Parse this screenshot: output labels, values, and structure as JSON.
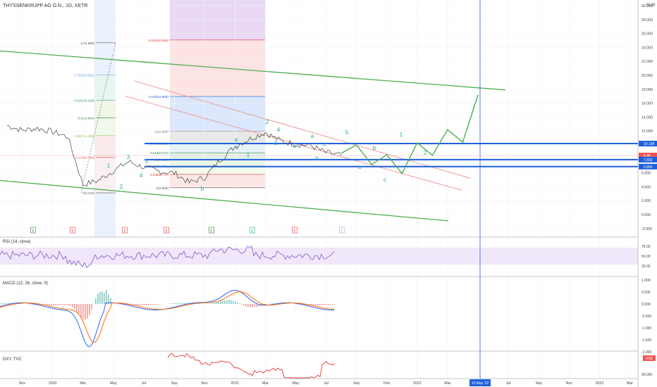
{
  "header": {
    "symbol_title": "THYSSENKRUPP AG O.N., 1D, XETR",
    "currency": "EUR"
  },
  "price_axis": {
    "ticks": [
      "30.000",
      "28.000",
      "26.000",
      "24.000",
      "22.000",
      "20.000",
      "18.000",
      "16.000",
      "14.000",
      "12.000",
      "10.000",
      "8.000",
      "6.000",
      "4.000",
      "2.000",
      "0.000",
      "-2.000"
    ],
    "badges": [
      {
        "label": "10.198",
        "value": 10.198,
        "color": "#1e5fdc"
      },
      {
        "label": "8.48",
        "value": 8.48,
        "color": "#ef5350"
      },
      {
        "label": "7.892",
        "value": 7.892,
        "color": "#1e5fdc"
      },
      {
        "label": "6.892",
        "value": 6.892,
        "color": "#1e5fdc"
      }
    ]
  },
  "time_axis": {
    "ticks": [
      "Nov",
      "2020",
      "Mar",
      "May",
      "Jul",
      "Sep",
      "Nov",
      "2021",
      "Mar",
      "May",
      "Jul",
      "Sep",
      "Nov",
      "2022",
      "Mar",
      "May",
      "Jul",
      "Sep",
      "Nov",
      "2023",
      "Mar"
    ],
    "cursor_label": "13 May '22"
  },
  "fib_left": {
    "levels": [
      {
        "label": "1(24.668)",
        "value": 24.668,
        "color": "#555555"
      },
      {
        "label": "0.786(20.052)",
        "value": 20.052,
        "color": "#4a90e2"
      },
      {
        "label": "0.618(16.428)",
        "value": 16.428,
        "color": "#2e8b57"
      },
      {
        "label": "0.5(13.884)",
        "value": 13.884,
        "color": "#2e7d32"
      },
      {
        "label": "0.382(11.338)",
        "value": 11.338,
        "color": "#8bc34a"
      },
      {
        "label": "0.236(8.190)",
        "value": 8.19,
        "color": "#e53935"
      },
      {
        "label": "0(3.120)",
        "value": 3.12,
        "color": "#555555"
      }
    ]
  },
  "fib_right": {
    "levels": [
      {
        "label": "2.618(25.066)",
        "value": 25.066,
        "color": "#e53935"
      },
      {
        "label": "1.618(16.968)",
        "value": 16.968,
        "color": "#1e5fdc"
      },
      {
        "label": "1(11.964)",
        "value": 11.964,
        "color": "#555555"
      },
      {
        "label": "0.786(10.230)",
        "value": 10.23,
        "color": "#4a90e2"
      },
      {
        "label": "0.618(8.870)",
        "value": 8.87,
        "color": "#2e8b57"
      },
      {
        "label": "0.5(7.914)",
        "value": 7.914,
        "color": "#2e7d32"
      },
      {
        "label": "0.382(6.959)",
        "value": 6.959,
        "color": "#8bc34a"
      },
      {
        "label": "0.236(5.775)",
        "value": 5.775,
        "color": "#e53935"
      },
      {
        "label": "0(3.860)",
        "value": 3.86,
        "color": "#555555"
      }
    ]
  },
  "wave_labels": [
    "1",
    "2",
    "3",
    "4",
    "5",
    "a",
    "b",
    "c",
    "1",
    "2",
    "3",
    "4",
    "5",
    "a",
    "b",
    "c",
    "5",
    "a",
    "b",
    "c",
    "1",
    "2"
  ],
  "event_markers": [
    "E",
    "E",
    "E",
    "E",
    "E",
    "E",
    "E",
    "E"
  ],
  "indicators": {
    "rsi": {
      "title": "RSI (14, close)",
      "ticks": [
        "75.00",
        "50.00",
        "25.00"
      ],
      "upper_band": 70,
      "lower_band": 30
    },
    "macd": {
      "title": "MACD (12, 26, close, 9)",
      "ticks": [
        "1.000",
        "0.500",
        "0.000",
        "-0.500",
        "-1.000",
        "-1.500",
        "-2.000"
      ]
    },
    "dxy": {
      "title": "DXY, TVC",
      "ticks": [
        "90.000"
      ],
      "unit": "USD"
    }
  },
  "chart_data": {
    "type": "line",
    "title": "THYSSENKRUPP AG O.N., 1D, XETR",
    "ylim": [
      -3,
      31
    ],
    "x_range": [
      "Oct 2019",
      "Apr 2023"
    ],
    "series": [
      {
        "name": "THYSSENKRUPP AG O.N.",
        "x": [
          "2019-10",
          "2019-11",
          "2019-12",
          "2020-01",
          "2020-02",
          "2020-03",
          "2020-04",
          "2020-05",
          "2020-06",
          "2020-07",
          "2020-08",
          "2020-09",
          "2020-10",
          "2020-11",
          "2020-12",
          "2021-01",
          "2021-02",
          "2021-03",
          "2021-04",
          "2021-05",
          "2021-06",
          "2021-07",
          "2021-08"
        ],
        "values": [
          12.8,
          12.1,
          12.4,
          11.9,
          11.2,
          4.3,
          4.9,
          6.3,
          7.6,
          6.8,
          6.2,
          6.0,
          4.6,
          5.3,
          7.8,
          9.8,
          10.9,
          11.8,
          10.6,
          10.1,
          9.9,
          8.9,
          8.5
        ]
      },
      {
        "name": "Projected path",
        "x": [
          "2021-08",
          "2021-09",
          "2021-10",
          "2021-11",
          "2021-12",
          "2022-01",
          "2022-02",
          "2022-03",
          "2022-04",
          "2022-05"
        ],
        "values": [
          8.8,
          10.0,
          7.2,
          8.6,
          5.9,
          10.3,
          8.5,
          12.2,
          10.4,
          17.2
        ]
      }
    ],
    "horizontal_levels": [
      10.198,
      7.892,
      6.892
    ],
    "date_marker": "13 May '22"
  }
}
